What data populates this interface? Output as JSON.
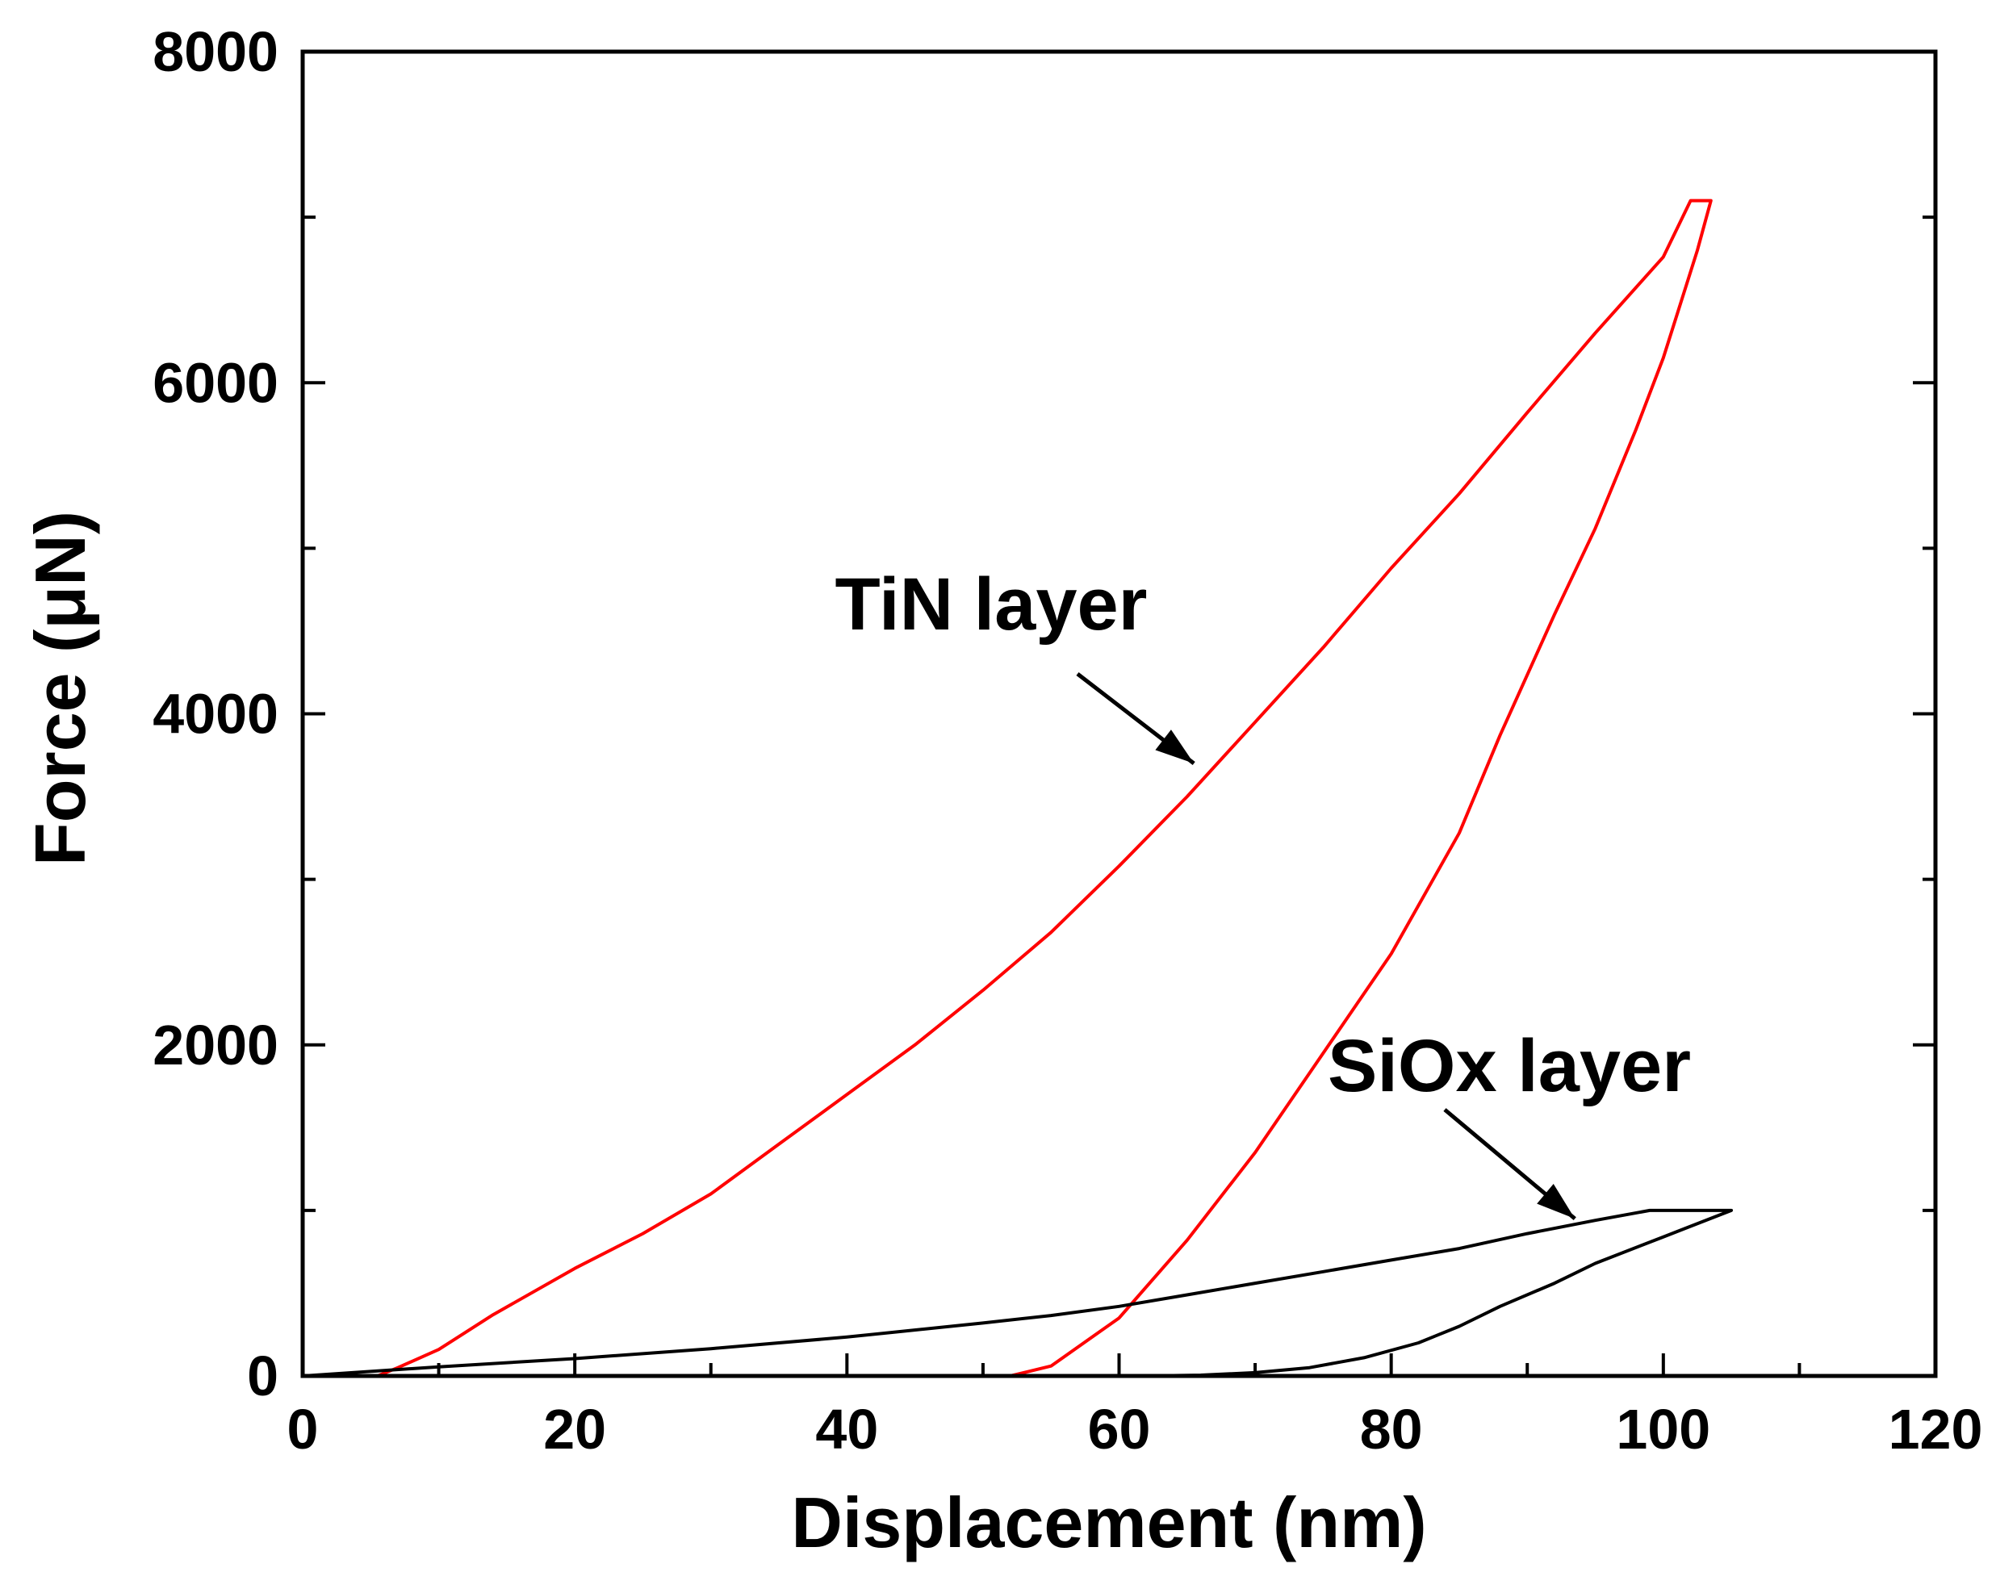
{
  "chart_data": {
    "type": "line",
    "title": "",
    "xlabel": "Displacement (nm)",
    "ylabel": "Force (μN)",
    "xlim": [
      0,
      120
    ],
    "ylim": [
      0,
      8000
    ],
    "x_ticks": [
      0,
      20,
      40,
      60,
      80,
      100,
      120
    ],
    "x_tick_labels": [
      "0",
      "20",
      "40",
      "60",
      "80",
      "100",
      "120"
    ],
    "y_ticks": [
      0,
      2000,
      4000,
      6000,
      8000
    ],
    "y_tick_labels": [
      "0",
      "2000",
      "4000",
      "6000",
      "8000"
    ],
    "grid": false,
    "series": [
      {
        "name": "TiN layer",
        "color": "#ff0000",
        "points": [
          [
            0,
            0
          ],
          [
            5.5,
            0
          ],
          [
            7,
            50
          ],
          [
            10,
            160
          ],
          [
            14,
            370
          ],
          [
            20,
            650
          ],
          [
            25,
            860
          ],
          [
            30,
            1100
          ],
          [
            35,
            1400
          ],
          [
            40,
            1700
          ],
          [
            45,
            2000
          ],
          [
            50,
            2330
          ],
          [
            55,
            2680
          ],
          [
            60,
            3080
          ],
          [
            65,
            3500
          ],
          [
            70,
            3950
          ],
          [
            75,
            4400
          ],
          [
            80,
            4880
          ],
          [
            85,
            5330
          ],
          [
            90,
            5820
          ],
          [
            95,
            6300
          ],
          [
            100,
            6760
          ],
          [
            102,
            7100
          ],
          [
            103.5,
            7100
          ],
          [
            102.5,
            6800
          ],
          [
            100,
            6150
          ],
          [
            98,
            5720
          ],
          [
            95,
            5120
          ],
          [
            92,
            4600
          ],
          [
            88,
            3870
          ],
          [
            85,
            3280
          ],
          [
            80,
            2550
          ],
          [
            75,
            1950
          ],
          [
            70,
            1350
          ],
          [
            65,
            820
          ],
          [
            60,
            350
          ],
          [
            55,
            60
          ],
          [
            52,
            0
          ],
          [
            37,
            0
          ]
        ]
      },
      {
        "name": "SiOx layer",
        "color": "#000000",
        "points": [
          [
            0,
            0
          ],
          [
            10,
            55
          ],
          [
            20,
            105
          ],
          [
            30,
            165
          ],
          [
            40,
            235
          ],
          [
            50,
            320
          ],
          [
            55,
            365
          ],
          [
            60,
            420
          ],
          [
            65,
            490
          ],
          [
            70,
            560
          ],
          [
            75,
            630
          ],
          [
            80,
            700
          ],
          [
            85,
            770
          ],
          [
            90,
            860
          ],
          [
            95,
            940
          ],
          [
            99,
            1000
          ],
          [
            105,
            1000
          ],
          [
            100,
            840
          ],
          [
            95,
            680
          ],
          [
            92,
            560
          ],
          [
            88,
            420
          ],
          [
            85,
            300
          ],
          [
            82,
            200
          ],
          [
            78,
            110
          ],
          [
            74,
            50
          ],
          [
            70,
            20
          ],
          [
            66,
            5
          ],
          [
            62,
            0
          ]
        ]
      }
    ],
    "annotations": [
      {
        "text": "TiN layer",
        "points_to": [
          65.5,
          3700
        ]
      },
      {
        "text": "SiOx layer",
        "points_to": [
          93.5,
          950
        ]
      }
    ]
  }
}
